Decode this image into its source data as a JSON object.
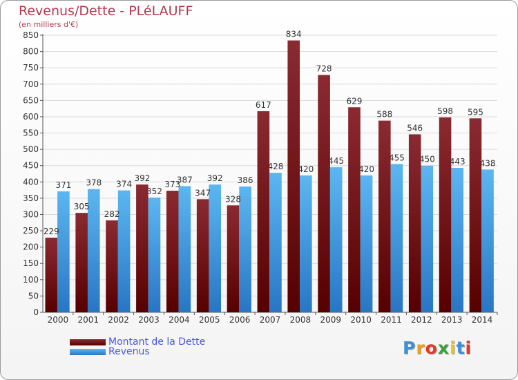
{
  "title": "Revenus/Dette - PLéLAUFF",
  "subtitle": "(en milliers d'€)",
  "colors": {
    "debt_top": "#8a2a31",
    "debt_bottom": "#570000",
    "revenue_top": "#5cb6f0",
    "revenue_bottom": "#2876c4",
    "title": "#b5374e",
    "legend_text": "#4a55e0",
    "grid": "#d9d9d9",
    "axis": "#555555"
  },
  "logo": {
    "text": "Proxiti",
    "letters": [
      "P",
      "r",
      "o",
      "x",
      "i",
      "t",
      "i"
    ],
    "colors": [
      "#3f8fd6",
      "#f0a020",
      "#e23a2a",
      "#3aa040",
      "#f0c020",
      "#3f8fd6",
      "#e23a2a"
    ]
  },
  "chart_data": {
    "type": "bar",
    "title": "Revenus/Dette - PLéLAUFF",
    "subtitle": "(en milliers d'€)",
    "xlabel": "",
    "ylabel": "",
    "categories": [
      "2000",
      "2001",
      "2002",
      "2003",
      "2004",
      "2005",
      "2006",
      "2007",
      "2008",
      "2009",
      "2010",
      "2011",
      "2012",
      "2013",
      "2014"
    ],
    "series": [
      {
        "name": "Montant de la Dette",
        "values": [
          229,
          305,
          282,
          392,
          373,
          347,
          328,
          617,
          834,
          728,
          629,
          588,
          546,
          598,
          595
        ]
      },
      {
        "name": "Revenus",
        "values": [
          371,
          378,
          374,
          352,
          387,
          392,
          386,
          428,
          420,
          445,
          420,
          455,
          450,
          443,
          438
        ]
      }
    ],
    "ylim": [
      0,
      850
    ],
    "ytick_step": 50,
    "grid": true,
    "legend": "bottom-left"
  }
}
